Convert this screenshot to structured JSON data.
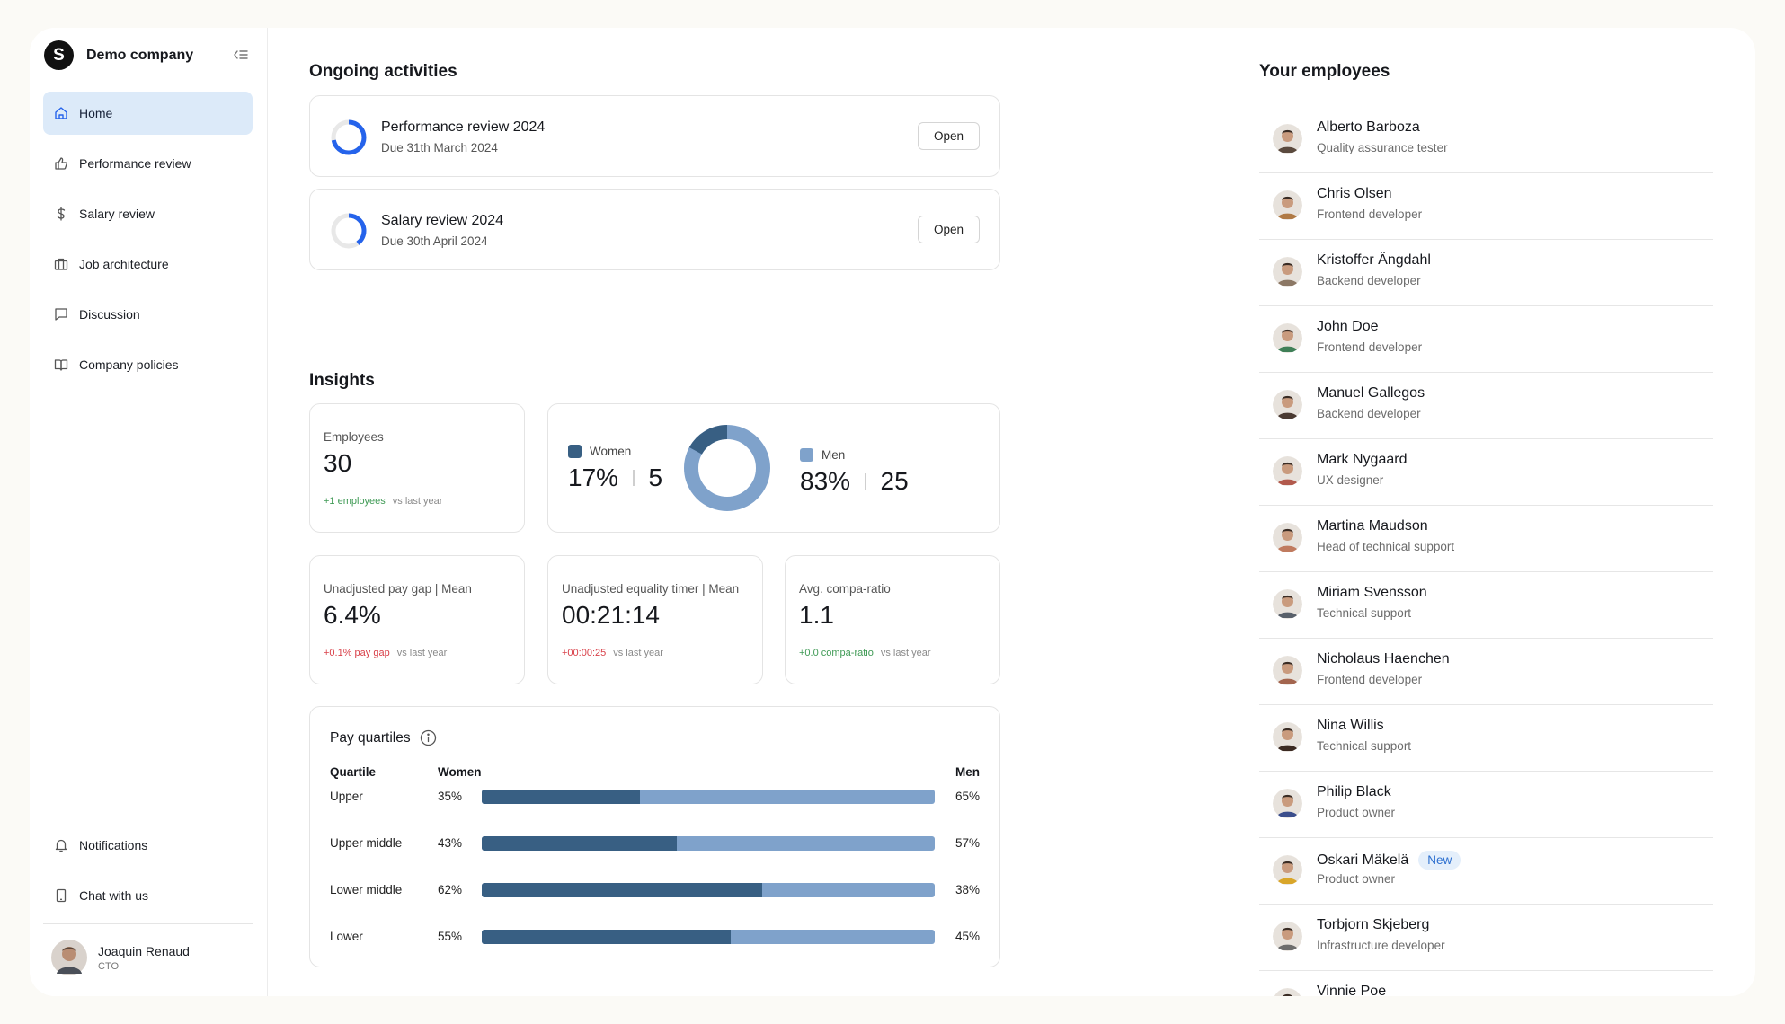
{
  "brand": {
    "logo_letter": "S",
    "name": "Demo company"
  },
  "nav": {
    "items": [
      {
        "label": "Home",
        "icon": "home-icon",
        "active": true
      },
      {
        "label": "Performance review",
        "icon": "thumbs-up-icon"
      },
      {
        "label": "Salary review",
        "icon": "dollar-icon"
      },
      {
        "label": "Job architecture",
        "icon": "briefcase-icon"
      },
      {
        "label": "Discussion",
        "icon": "chat-bubble-icon"
      },
      {
        "label": "Company policies",
        "icon": "book-icon"
      }
    ],
    "bottom": [
      {
        "label": "Notifications",
        "icon": "bell-icon"
      },
      {
        "label": "Chat with us",
        "icon": "phone-icon"
      }
    ]
  },
  "user": {
    "name": "Joaquin Renaud",
    "role": "CTO"
  },
  "activities": {
    "title": "Ongoing activities",
    "items": [
      {
        "title": "Performance review 2024",
        "due": "Due 31th March 2024",
        "progress": 0.72,
        "button": "Open"
      },
      {
        "title": "Salary review 2024",
        "due": "Due 30th April 2024",
        "progress": 0.4,
        "button": "Open"
      }
    ]
  },
  "insights": {
    "title": "Insights",
    "employees": {
      "label": "Employees",
      "value": "30",
      "delta": "+1 employees",
      "compare": "vs last year"
    },
    "gender": {
      "women_label": "Women",
      "women_pct": "17%",
      "women_count": "5",
      "men_label": "Men",
      "men_pct": "83%",
      "men_count": "25",
      "women_share": 0.17
    },
    "pay_gap": {
      "label": "Unadjusted pay gap | Mean",
      "value": "6.4%",
      "delta": "+0.1% pay gap",
      "compare": "vs last year"
    },
    "equality": {
      "label": "Unadjusted equality timer | Mean",
      "value": "00:21:14",
      "delta": "+00:00:25",
      "compare": "vs last year"
    },
    "compa": {
      "label": "Avg. compa-ratio",
      "value": "1.1",
      "delta": "+0.0 compa-ratio",
      "compare": "vs last year"
    }
  },
  "quartiles": {
    "title": "Pay quartiles",
    "col_quartile": "Quartile",
    "col_women": "Women",
    "col_men": "Men",
    "rows": [
      {
        "name": "Upper",
        "women": "35%",
        "men": "65%",
        "women_share": 0.35
      },
      {
        "name": "Upper middle",
        "women": "43%",
        "men": "57%",
        "women_share": 0.43
      },
      {
        "name": "Lower middle",
        "women": "62%",
        "men": "38%",
        "women_share": 0.62
      },
      {
        "name": "Lower",
        "women": "55%",
        "men": "45%",
        "women_share": 0.55
      }
    ]
  },
  "employees": {
    "title": "Your employees",
    "list": [
      {
        "name": "Alberto Barboza",
        "role": "Quality assurance tester",
        "avatar_color": "#5b4a3e"
      },
      {
        "name": "Chris Olsen",
        "role": "Frontend developer",
        "avatar_color": "#b07a45"
      },
      {
        "name": "Kristoffer Ängdahl",
        "role": "Backend developer",
        "avatar_color": "#8c7865"
      },
      {
        "name": "John Doe",
        "role": "Frontend developer",
        "avatar_color": "#3f7f57"
      },
      {
        "name": "Manuel Gallegos",
        "role": "Backend developer",
        "avatar_color": "#4a3a32"
      },
      {
        "name": "Mark Nygaard",
        "role": "UX designer",
        "avatar_color": "#b25a4d"
      },
      {
        "name": "Martina Maudson",
        "role": "Head of technical support",
        "avatar_color": "#c07b5f"
      },
      {
        "name": "Miriam Svensson",
        "role": "Technical support",
        "avatar_color": "#59606a"
      },
      {
        "name": "Nicholaus Haenchen",
        "role": "Frontend developer",
        "avatar_color": "#a3654e"
      },
      {
        "name": "Nina Willis",
        "role": "Technical support",
        "avatar_color": "#3b2a22"
      },
      {
        "name": "Philip Black",
        "role": "Product owner",
        "avatar_color": "#3b4e8c"
      },
      {
        "name": "Oskari Mäkelä",
        "role": "Product owner",
        "badge": "New",
        "avatar_color": "#d9a62a"
      },
      {
        "name": "Torbjorn Skjeberg",
        "role": "Infrastructure developer",
        "avatar_color": "#6d6d6d"
      },
      {
        "name": "Vinnie Poe",
        "role": "",
        "avatar_color": "#8a6f5b"
      }
    ]
  },
  "colors": {
    "women": "#385f83",
    "men": "#7fa2cb",
    "accent": "#2563eb",
    "active_nav": "#dceaf9"
  }
}
